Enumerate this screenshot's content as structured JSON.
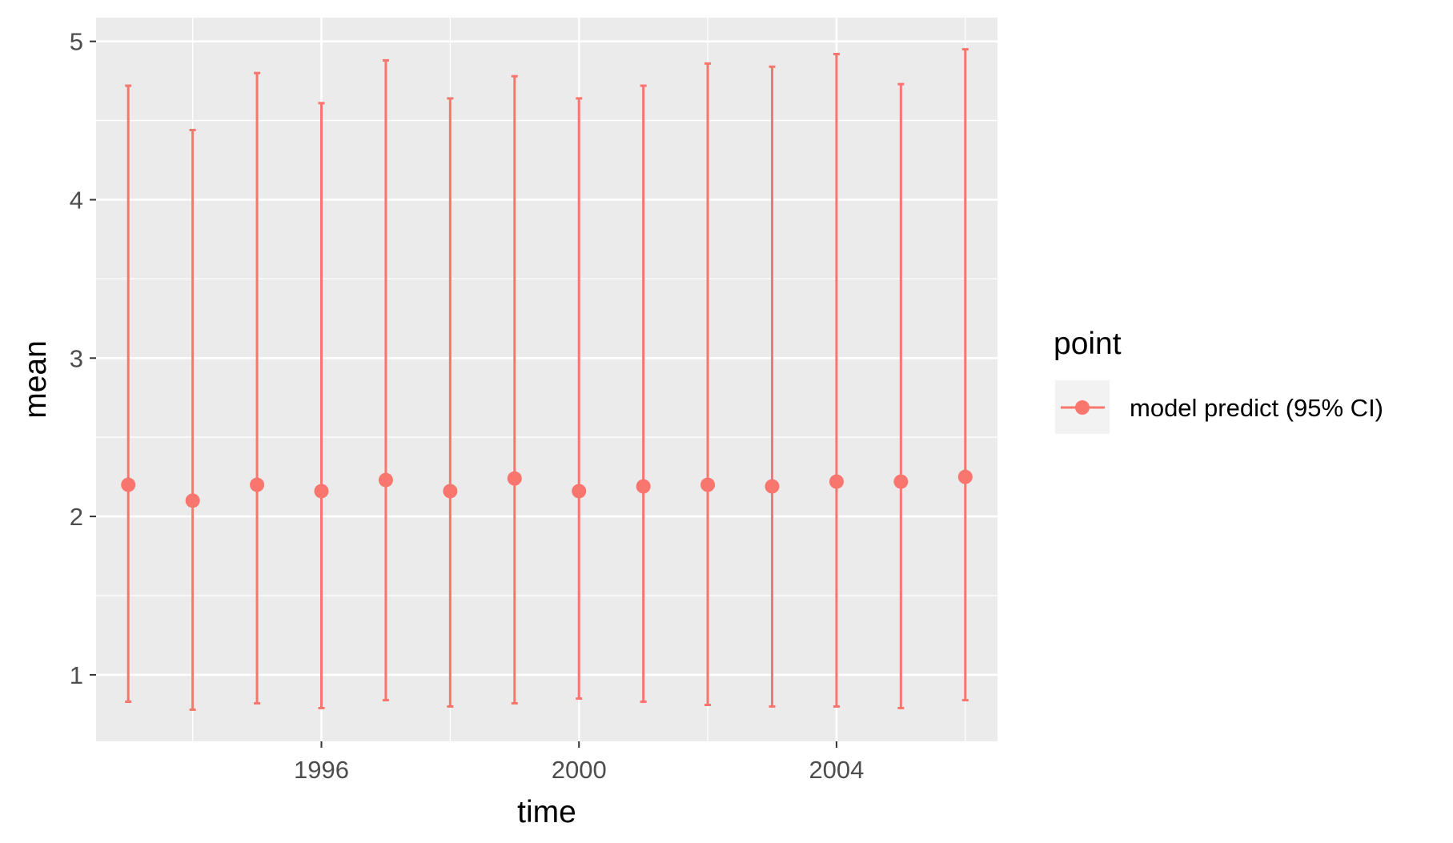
{
  "chart_data": {
    "type": "scatter",
    "title": "",
    "xlabel": "time",
    "ylabel": "mean",
    "xlim": [
      1992.5,
      2006.5
    ],
    "ylim": [
      0.58,
      5.15
    ],
    "x_ticks": [
      1996,
      2000,
      2004
    ],
    "x_tick_labels": [
      "1996",
      "2000",
      "2004"
    ],
    "y_ticks": [
      1,
      2,
      3,
      4,
      5
    ],
    "y_tick_labels": [
      "1",
      "2",
      "3",
      "4",
      "5"
    ],
    "grid": true,
    "legend": {
      "title": "point",
      "placement": "right",
      "entries": [
        "model predict (95% CI)"
      ]
    },
    "series": [
      {
        "name": "model predict (95% CI)",
        "color": "#F8766D",
        "x": [
          1993,
          1994,
          1995,
          1996,
          1997,
          1998,
          1999,
          2000,
          2001,
          2002,
          2003,
          2004,
          2005,
          2006
        ],
        "y": [
          2.2,
          2.1,
          2.2,
          2.16,
          2.23,
          2.16,
          2.24,
          2.16,
          2.19,
          2.2,
          2.19,
          2.22,
          2.22,
          2.25
        ],
        "lower": [
          0.83,
          0.78,
          0.82,
          0.79,
          0.84,
          0.8,
          0.82,
          0.85,
          0.83,
          0.81,
          0.8,
          0.8,
          0.79,
          0.84
        ],
        "upper": [
          4.72,
          4.44,
          4.8,
          4.61,
          4.88,
          4.64,
          4.78,
          4.64,
          4.72,
          4.86,
          4.84,
          4.92,
          4.73,
          4.95
        ]
      }
    ],
    "colors": {
      "panel_background": "#EBEBEB",
      "grid": "#FFFFFF",
      "series": "#F8766D",
      "legend_key_background": "#F2F2F2"
    }
  }
}
